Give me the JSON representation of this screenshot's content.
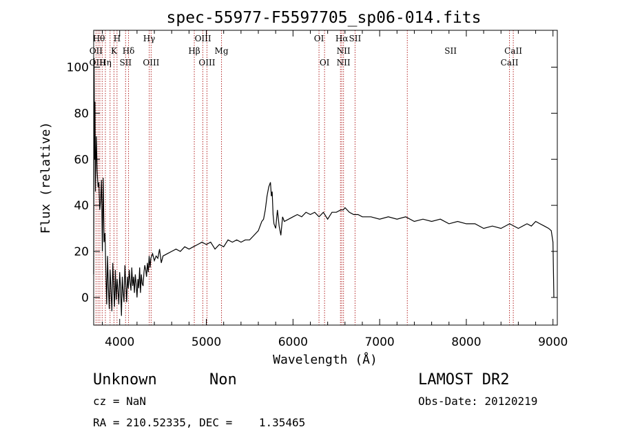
{
  "chart_data": {
    "type": "line",
    "title": "spec-55977-F5597705_sp06-014.fits",
    "xlabel": "Wavelength (Å)",
    "ylabel": "Flux (relative)",
    "xlim": [
      3700,
      9050
    ],
    "ylim": [
      -12,
      116
    ],
    "x_ticks": [
      4000,
      5000,
      6000,
      7000,
      8000,
      9000
    ],
    "y_ticks": [
      0,
      20,
      40,
      60,
      80,
      100
    ],
    "grid": false,
    "line_color": "#000000",
    "marker_color": "#b22222",
    "spectrum": {
      "x": [
        3700,
        3705,
        3710,
        3715,
        3720,
        3730,
        3740,
        3750,
        3760,
        3770,
        3780,
        3790,
        3800,
        3810,
        3820,
        3830,
        3840,
        3850,
        3860,
        3870,
        3880,
        3890,
        3900,
        3910,
        3920,
        3930,
        3940,
        3950,
        3960,
        3970,
        3980,
        3990,
        4000,
        4010,
        4020,
        4030,
        4040,
        4050,
        4060,
        4070,
        4080,
        4090,
        4100,
        4110,
        4120,
        4130,
        4140,
        4150,
        4160,
        4170,
        4180,
        4190,
        4200,
        4210,
        4220,
        4230,
        4240,
        4250,
        4260,
        4270,
        4280,
        4290,
        4300,
        4310,
        4320,
        4330,
        4340,
        4350,
        4360,
        4380,
        4400,
        4420,
        4440,
        4460,
        4480,
        4500,
        4550,
        4600,
        4650,
        4700,
        4750,
        4800,
        4850,
        4900,
        4950,
        5000,
        5050,
        5100,
        5150,
        5200,
        5250,
        5300,
        5350,
        5400,
        5450,
        5500,
        5550,
        5600,
        5620,
        5640,
        5660,
        5680,
        5700,
        5720,
        5740,
        5750,
        5760,
        5770,
        5780,
        5800,
        5820,
        5840,
        5860,
        5880,
        5900,
        5950,
        6000,
        6050,
        6100,
        6150,
        6200,
        6250,
        6300,
        6350,
        6400,
        6450,
        6500,
        6550,
        6580,
        6600,
        6650,
        6700,
        6750,
        6800,
        6900,
        7000,
        7100,
        7200,
        7300,
        7400,
        7500,
        7600,
        7700,
        7800,
        7900,
        8000,
        8100,
        8200,
        8300,
        8400,
        8500,
        8600,
        8700,
        8750,
        8800,
        8850,
        8900,
        8950,
        8980,
        9000,
        9010
      ],
      "y": [
        10,
        104,
        60,
        85,
        46,
        70,
        55,
        48,
        50,
        38,
        42,
        51,
        20,
        52,
        24,
        28,
        12,
        -3,
        18,
        4,
        -5,
        12,
        2,
        -6,
        15,
        5,
        -4,
        12,
        -1,
        8,
        3,
        -3,
        11,
        4,
        -8,
        9,
        2,
        -2,
        14,
        6,
        -2,
        9,
        4,
        12,
        7,
        3,
        13,
        5,
        9,
        2,
        10,
        6,
        0,
        8,
        4,
        13,
        2,
        10,
        6,
        5,
        11,
        14,
        12,
        9,
        15,
        11,
        18,
        13,
        17,
        19,
        16,
        18,
        17,
        21,
        15,
        18,
        19,
        20,
        21,
        20,
        22,
        21,
        22,
        23,
        24,
        23,
        24,
        21,
        23,
        22,
        25,
        24,
        25,
        24,
        25,
        25,
        27,
        29,
        31,
        33,
        34,
        38,
        44,
        48,
        50,
        44,
        46,
        36,
        32,
        30,
        38,
        31,
        27,
        35,
        33,
        34,
        35,
        36,
        35,
        37,
        36,
        37,
        35,
        37,
        34,
        37,
        37,
        38,
        38,
        39,
        37,
        36,
        36,
        35,
        35,
        34,
        35,
        34,
        35,
        33,
        34,
        33,
        34,
        32,
        33,
        32,
        32,
        30,
        31,
        30,
        32,
        30,
        32,
        31,
        33,
        32,
        31,
        30,
        29,
        24,
        0
      ]
    },
    "line_markers": {
      "x": [
        3727,
        3750,
        3771,
        3798,
        3835,
        3889,
        3934,
        3969,
        4102,
        4068,
        4341,
        4363,
        4861,
        4959,
        5007,
        5175,
        6300,
        6364,
        6548,
        6563,
        6583,
        6716,
        7319,
        8498,
        8542
      ],
      "labels_top": [
        {
          "x": 3760,
          "text": "Hθ"
        },
        {
          "x": 3970,
          "text": "H"
        },
        {
          "x": 4340,
          "text": "Hγ"
        },
        {
          "x": 4961,
          "text": "OIII"
        },
        {
          "x": 6300,
          "text": "OI"
        },
        {
          "x": 6563,
          "text": "Hα"
        },
        {
          "x": 6716,
          "text": "SII"
        }
      ],
      "labels_mid": [
        {
          "x": 3727,
          "text": "OII"
        },
        {
          "x": 3934,
          "text": "K"
        },
        {
          "x": 4102,
          "text": "Hδ"
        },
        {
          "x": 4861,
          "text": "Hβ"
        },
        {
          "x": 5175,
          "text": "Mg"
        },
        {
          "x": 6583,
          "text": "NII"
        },
        {
          "x": 7819,
          "text": "SII"
        },
        {
          "x": 8542,
          "text": "CaII"
        }
      ],
      "labels_low": [
        {
          "x": 3745,
          "text": "OIII"
        },
        {
          "x": 3835,
          "text": "Hη"
        },
        {
          "x": 4068,
          "text": "SII"
        },
        {
          "x": 4363,
          "text": "OIII"
        },
        {
          "x": 5007,
          "text": "OIII"
        },
        {
          "x": 6364,
          "text": "OI"
        },
        {
          "x": 6583,
          "text": "NII"
        },
        {
          "x": 8498,
          "text": "CaII"
        }
      ]
    }
  },
  "info": {
    "object_class": "Unknown",
    "object_subclass": "Non",
    "redshift": "cz = NaN",
    "coordinates": "RA = 210.52335, DEC =    1.35465",
    "survey": "LAMOST DR2",
    "obs_date": "Obs-Date: 20120219"
  }
}
